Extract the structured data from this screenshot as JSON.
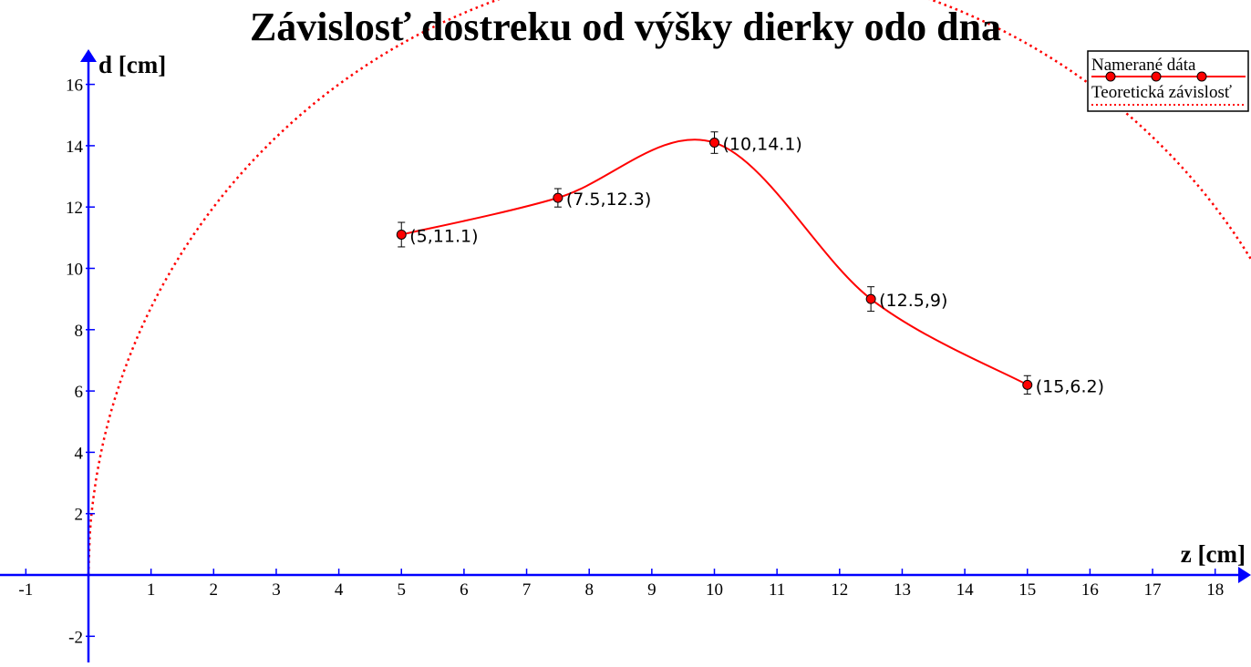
{
  "chart_data": {
    "type": "line",
    "title": "Závislosť dostreku od výšky dierky odo dna",
    "xlabel": "z [cm]",
    "ylabel": "d [cm]",
    "xlim": [
      -1.4,
      18.6
    ],
    "ylim": [
      -2.8,
      18.8
    ],
    "x_ticks": [
      -1,
      1,
      2,
      3,
      4,
      5,
      6,
      7,
      8,
      9,
      10,
      11,
      12,
      13,
      14,
      15,
      16,
      17,
      18
    ],
    "y_ticks": [
      -2,
      2,
      4,
      6,
      8,
      10,
      12,
      14,
      16
    ],
    "grid": false,
    "legend_position": "top-right",
    "series": [
      {
        "name": "Namerané dáta",
        "style": "solid-smooth-with-markers",
        "color": "#ff0000",
        "x": [
          5,
          7.5,
          10,
          12.5,
          15
        ],
        "y": [
          11.1,
          12.3,
          14.1,
          9,
          6.2
        ],
        "error": [
          0.4,
          0.3,
          0.35,
          0.4,
          0.3
        ],
        "labels": [
          "(5,11.1)",
          "(7.5,12.3)",
          "(10,14.1)",
          "(12.5,9)",
          "(15,6.2)"
        ]
      },
      {
        "name": "Teoretická závislosť",
        "style": "dotted",
        "color": "#ff0000",
        "formula": "d = 2*sqrt(z*(20 - z))",
        "x": [
          0,
          0.5,
          1,
          2,
          3,
          4,
          5,
          15,
          16,
          17,
          18,
          18.5
        ],
        "y": [
          0,
          6.24,
          8.72,
          12.0,
          14.28,
          16.0,
          17.32,
          17.32,
          16.0,
          14.28,
          12.0,
          10.54
        ]
      }
    ]
  },
  "colors": {
    "axis": "#0000ff",
    "data": "#ff0000",
    "text": "#000000",
    "background": "#ffffff"
  }
}
